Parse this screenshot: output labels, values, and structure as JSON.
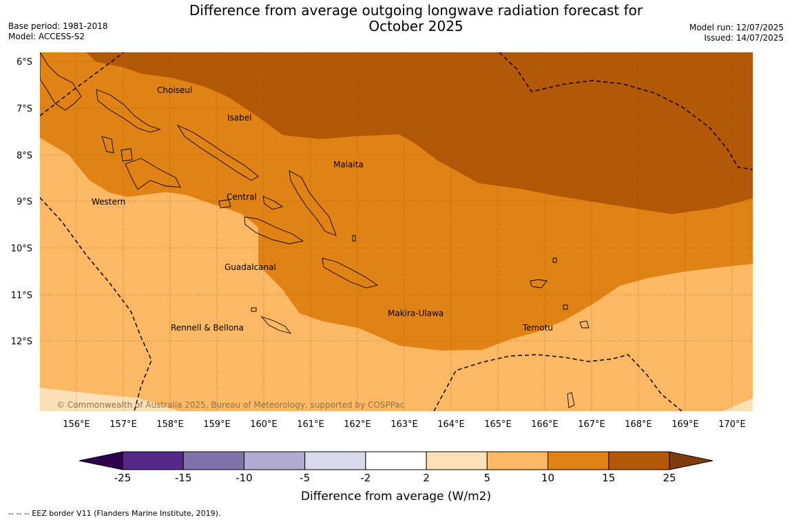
{
  "title": {
    "line1": "Difference from average outgoing longwave radiation forecast for",
    "line2": "October 2025"
  },
  "meta_left": {
    "base_period": "Base period: 1981-2018",
    "model": "Model: ACCESS-S2"
  },
  "meta_right": {
    "model_run": "Model run: 12/07/2025",
    "issued": "Issued: 14/07/2025"
  },
  "map": {
    "lat_labels": [
      "6°S",
      "7°S",
      "8°S",
      "9°S",
      "10°S",
      "11°S",
      "12°S"
    ],
    "lon_labels": [
      "156°E",
      "157°E",
      "158°E",
      "159°E",
      "160°E",
      "161°E",
      "162°E",
      "163°E",
      "164°E",
      "165°E",
      "166°E",
      "167°E",
      "168°E",
      "169°E",
      "170°E"
    ],
    "place_labels": {
      "choiseul": "Choiseul",
      "isabel": "Isabel",
      "malaita": "Malaita",
      "central": "Central",
      "western": "Western",
      "guadalcanal": "Guadalcanal",
      "makira": "Makira-Ulawa",
      "temotu": "Temotu",
      "rennell": "Rennell & Bellona"
    },
    "copyright": "© Commonwealth of Australia 2025, Bureau of Meteorology, supported by COSPPac"
  },
  "colorbar": {
    "ticks": [
      "-25",
      "-15",
      "-10",
      "-5",
      "-2",
      "2",
      "5",
      "10",
      "15",
      "25"
    ],
    "colors": [
      "#542788",
      "#8073ac",
      "#b2abd2",
      "#d8daeb",
      "#ffffff",
      "#fee0b6",
      "#fdb863",
      "#e08214",
      "#b35806"
    ],
    "under_color": "#2d004b",
    "over_color": "#7f3b08",
    "label": "Difference from average (W/m2)"
  },
  "footer": "--  --  -- EEZ border V11 (Flanders Marine Institute, 2019)."
}
